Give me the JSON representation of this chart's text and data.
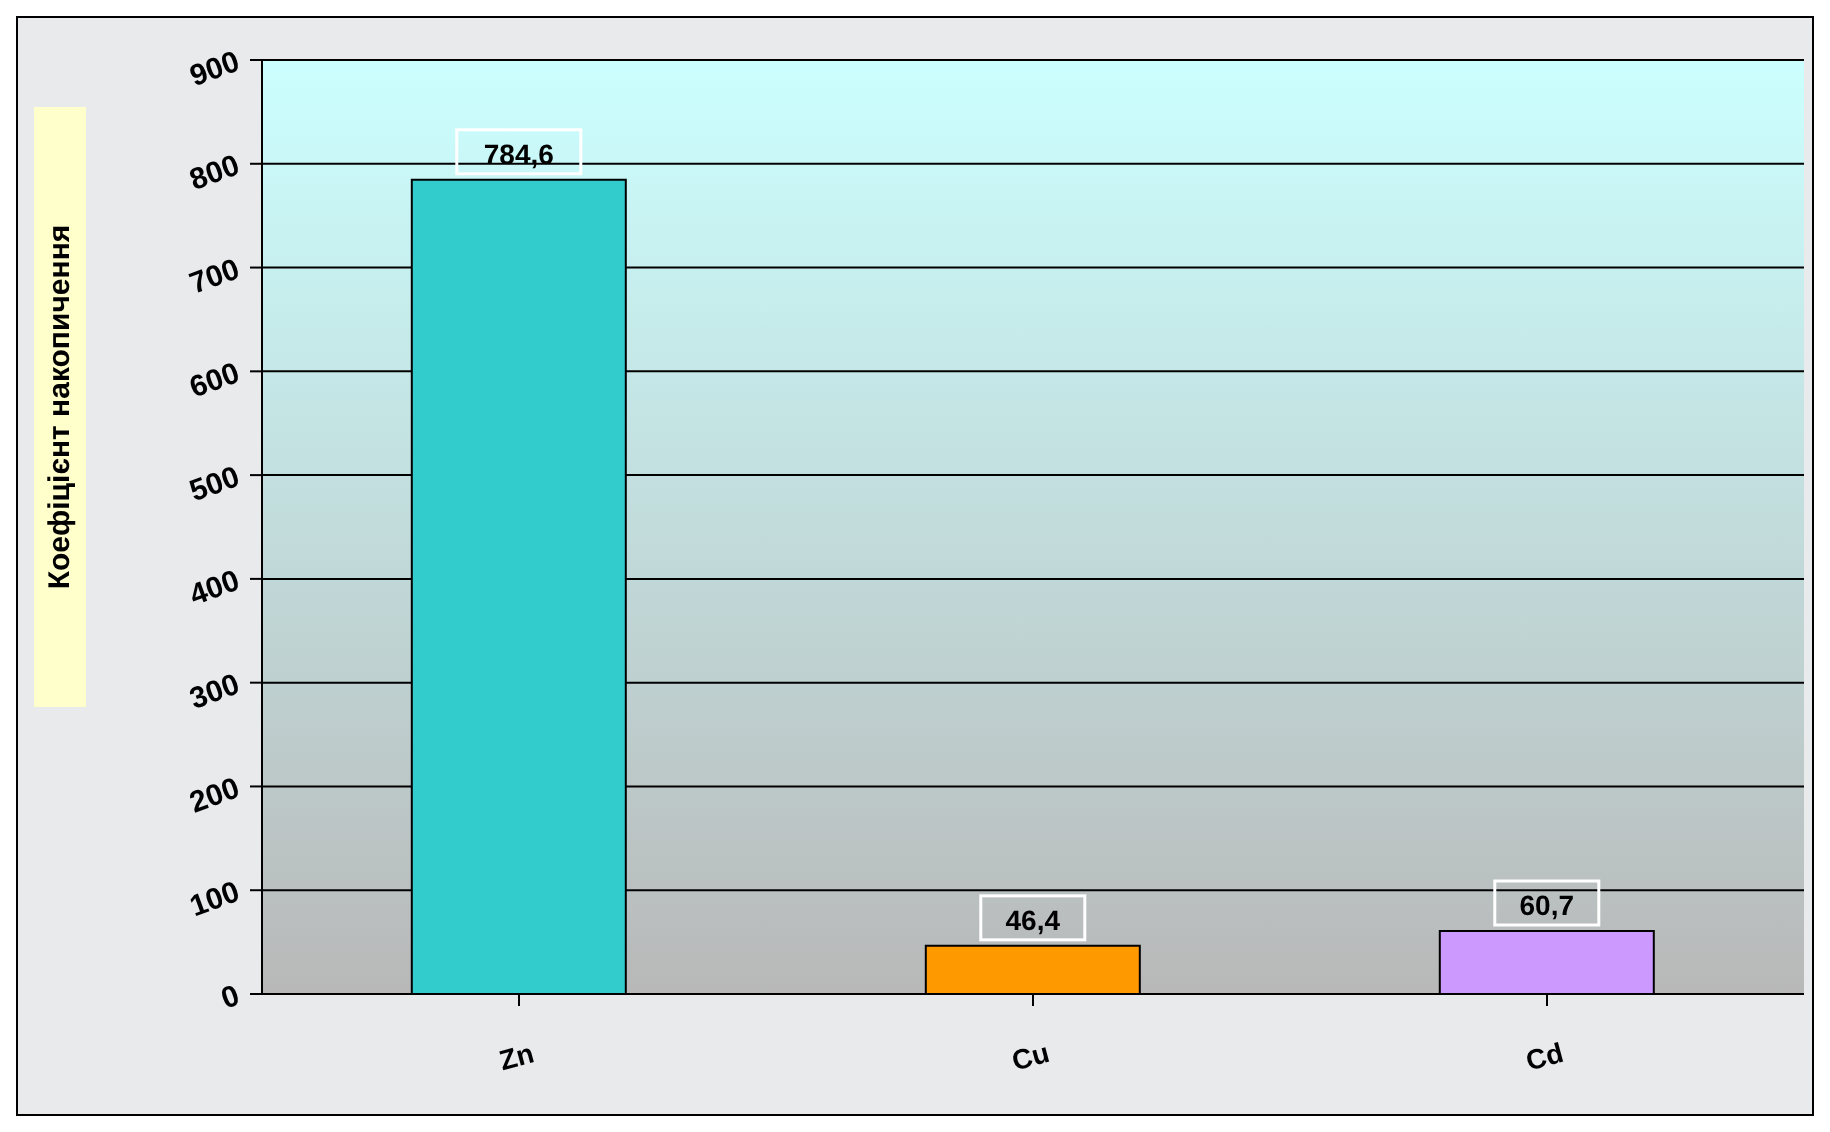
{
  "chart_data": {
    "type": "bar",
    "ylabel": "Коефіцієнт накопичення",
    "categories": [
      "Zn",
      "Cu",
      "Cd"
    ],
    "values": [
      784.6,
      46.4,
      60.7
    ],
    "value_labels": [
      "784,6",
      "46,4",
      "60,7"
    ],
    "colors": [
      "#33cccc",
      "#ff9900",
      "#cc99ff"
    ],
    "ylim": [
      0,
      900
    ],
    "yticks": [
      0,
      100,
      200,
      300,
      400,
      500,
      600,
      700,
      800,
      900
    ],
    "grid": "y"
  }
}
